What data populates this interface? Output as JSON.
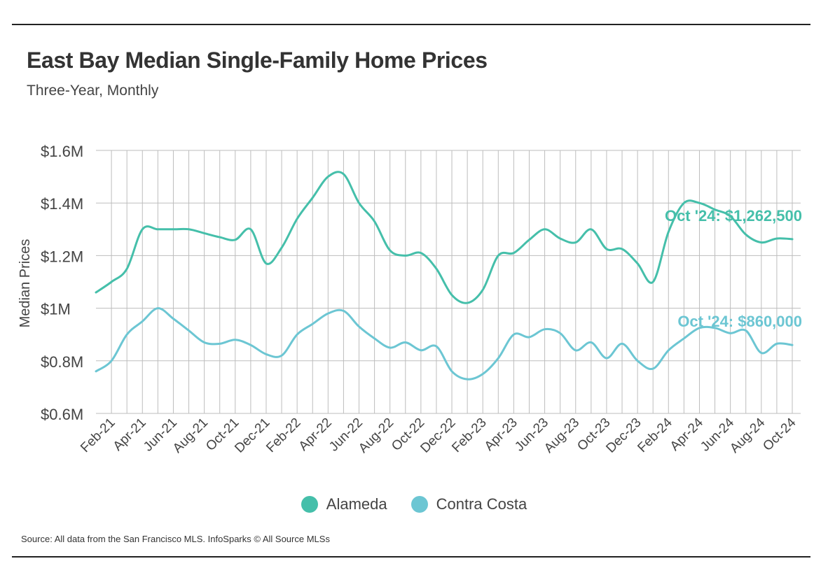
{
  "header": {
    "title": "East Bay Median Single-Family Home Prices",
    "subtitle": "Three-Year, Monthly"
  },
  "footer": {
    "source": "Source:  All data from the San Francisco MLS. InfoSparks © All Source MLSs"
  },
  "colors": {
    "alameda": "#45bfaa",
    "contra_costa": "#6cc6d3",
    "grid": "#bdbdbd",
    "text": "#333333"
  },
  "chart_data": {
    "type": "line",
    "title": "East Bay Median Single-Family Home Prices",
    "subtitle": "Three-Year, Monthly",
    "ylabel": "Median Prices",
    "xlabel": "",
    "ylim": [
      0.6,
      1.6
    ],
    "y_unit": "millions USD",
    "yticks": [
      {
        "value": 1.6,
        "label": "$1.6M"
      },
      {
        "value": 1.4,
        "label": "$1.4M"
      },
      {
        "value": 1.2,
        "label": "$1.2M"
      },
      {
        "value": 1.0,
        "label": "$1M"
      },
      {
        "value": 0.8,
        "label": "$0.8M"
      },
      {
        "value": 0.6,
        "label": "$0.6M"
      }
    ],
    "grid": true,
    "legend_position": "bottom-center",
    "x": [
      "Jan-21",
      "Feb-21",
      "Mar-21",
      "Apr-21",
      "May-21",
      "Jun-21",
      "Jul-21",
      "Aug-21",
      "Sep-21",
      "Oct-21",
      "Nov-21",
      "Dec-21",
      "Jan-22",
      "Feb-22",
      "Mar-22",
      "Apr-22",
      "May-22",
      "Jun-22",
      "Jul-22",
      "Aug-22",
      "Sep-22",
      "Oct-22",
      "Nov-22",
      "Dec-22",
      "Jan-23",
      "Feb-23",
      "Mar-23",
      "Apr-23",
      "May-23",
      "Jun-23",
      "Jul-23",
      "Aug-23",
      "Sep-23",
      "Oct-23",
      "Nov-23",
      "Dec-23",
      "Jan-24",
      "Feb-24",
      "Mar-24",
      "Apr-24",
      "May-24",
      "Jun-24",
      "Jul-24",
      "Aug-24",
      "Sep-24",
      "Oct-24"
    ],
    "x_tick_labels": [
      "Feb-21",
      "Apr-21",
      "Jun-21",
      "Aug-21",
      "Oct-21",
      "Dec-21",
      "Feb-22",
      "Apr-22",
      "Jun-22",
      "Aug-22",
      "Oct-22",
      "Dec-22",
      "Feb-23",
      "Apr-23",
      "Jun-23",
      "Aug-23",
      "Oct-23",
      "Dec-23",
      "Feb-24",
      "Apr-24",
      "Jun-24",
      "Aug-24",
      "Oct-24"
    ],
    "series": [
      {
        "name": "Alameda",
        "color": "#45bfaa",
        "values": [
          1.06,
          1.1,
          1.15,
          1.3,
          1.3,
          1.3,
          1.3,
          1.285,
          1.27,
          1.26,
          1.3,
          1.17,
          1.23,
          1.34,
          1.42,
          1.5,
          1.51,
          1.4,
          1.33,
          1.22,
          1.2,
          1.21,
          1.15,
          1.05,
          1.02,
          1.07,
          1.2,
          1.21,
          1.26,
          1.3,
          1.265,
          1.25,
          1.3,
          1.225,
          1.225,
          1.17,
          1.1,
          1.29,
          1.4,
          1.4,
          1.375,
          1.35,
          1.28,
          1.25,
          1.265,
          1.2625
        ],
        "end_label": "Oct '24: $1,262,500"
      },
      {
        "name": "Contra Costa",
        "color": "#6cc6d3",
        "values": [
          0.76,
          0.8,
          0.9,
          0.95,
          1.0,
          0.96,
          0.915,
          0.87,
          0.865,
          0.88,
          0.86,
          0.825,
          0.82,
          0.9,
          0.94,
          0.98,
          0.99,
          0.93,
          0.885,
          0.85,
          0.87,
          0.84,
          0.855,
          0.76,
          0.73,
          0.75,
          0.81,
          0.9,
          0.89,
          0.92,
          0.905,
          0.84,
          0.87,
          0.81,
          0.865,
          0.8,
          0.77,
          0.84,
          0.885,
          0.925,
          0.925,
          0.905,
          0.915,
          0.83,
          0.865,
          0.86
        ],
        "end_label": "Oct '24: $860,000"
      }
    ]
  }
}
